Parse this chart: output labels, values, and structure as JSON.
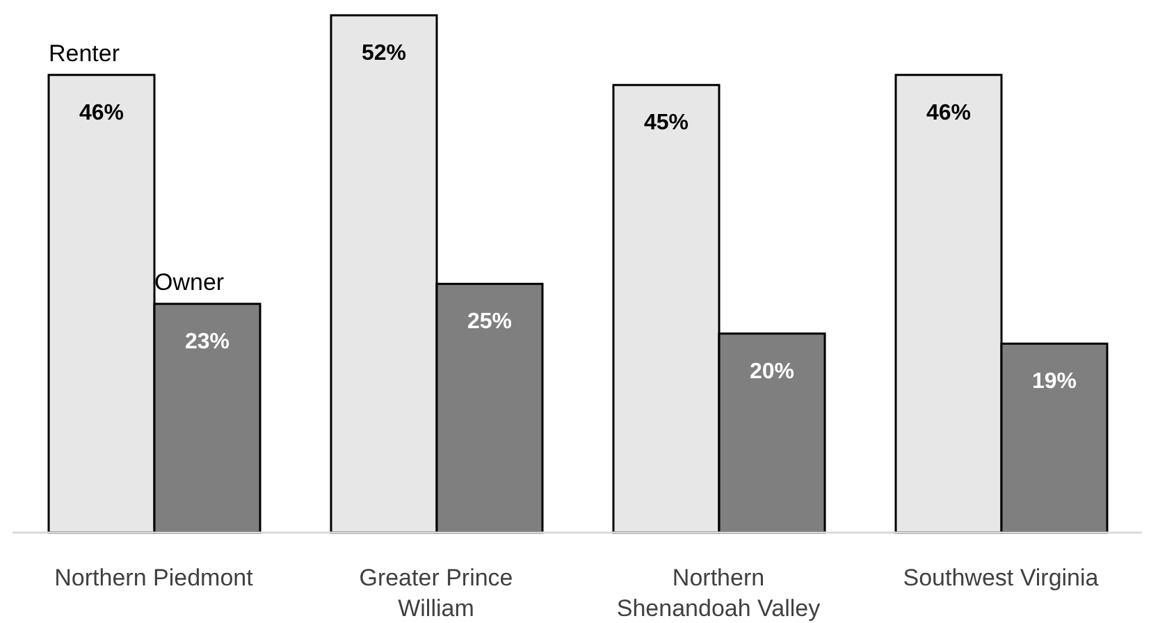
{
  "chart_data": {
    "type": "bar",
    "categories": [
      "Northern Piedmont",
      "Greater Prince William",
      "Northern Shenandoah Valley",
      "Southwest Virginia"
    ],
    "series": [
      {
        "name": "Renter",
        "color": "#e7e7e7",
        "values": [
          46,
          52,
          45,
          46
        ],
        "value_labels": [
          "46%",
          "52%",
          "45%",
          "46%"
        ]
      },
      {
        "name": "Owner",
        "color": "#7f7f7f",
        "values": [
          23,
          25,
          20,
          19
        ],
        "value_labels": [
          "23%",
          "25%",
          "20%",
          "19%"
        ]
      }
    ],
    "legend": false,
    "grid": false
  }
}
